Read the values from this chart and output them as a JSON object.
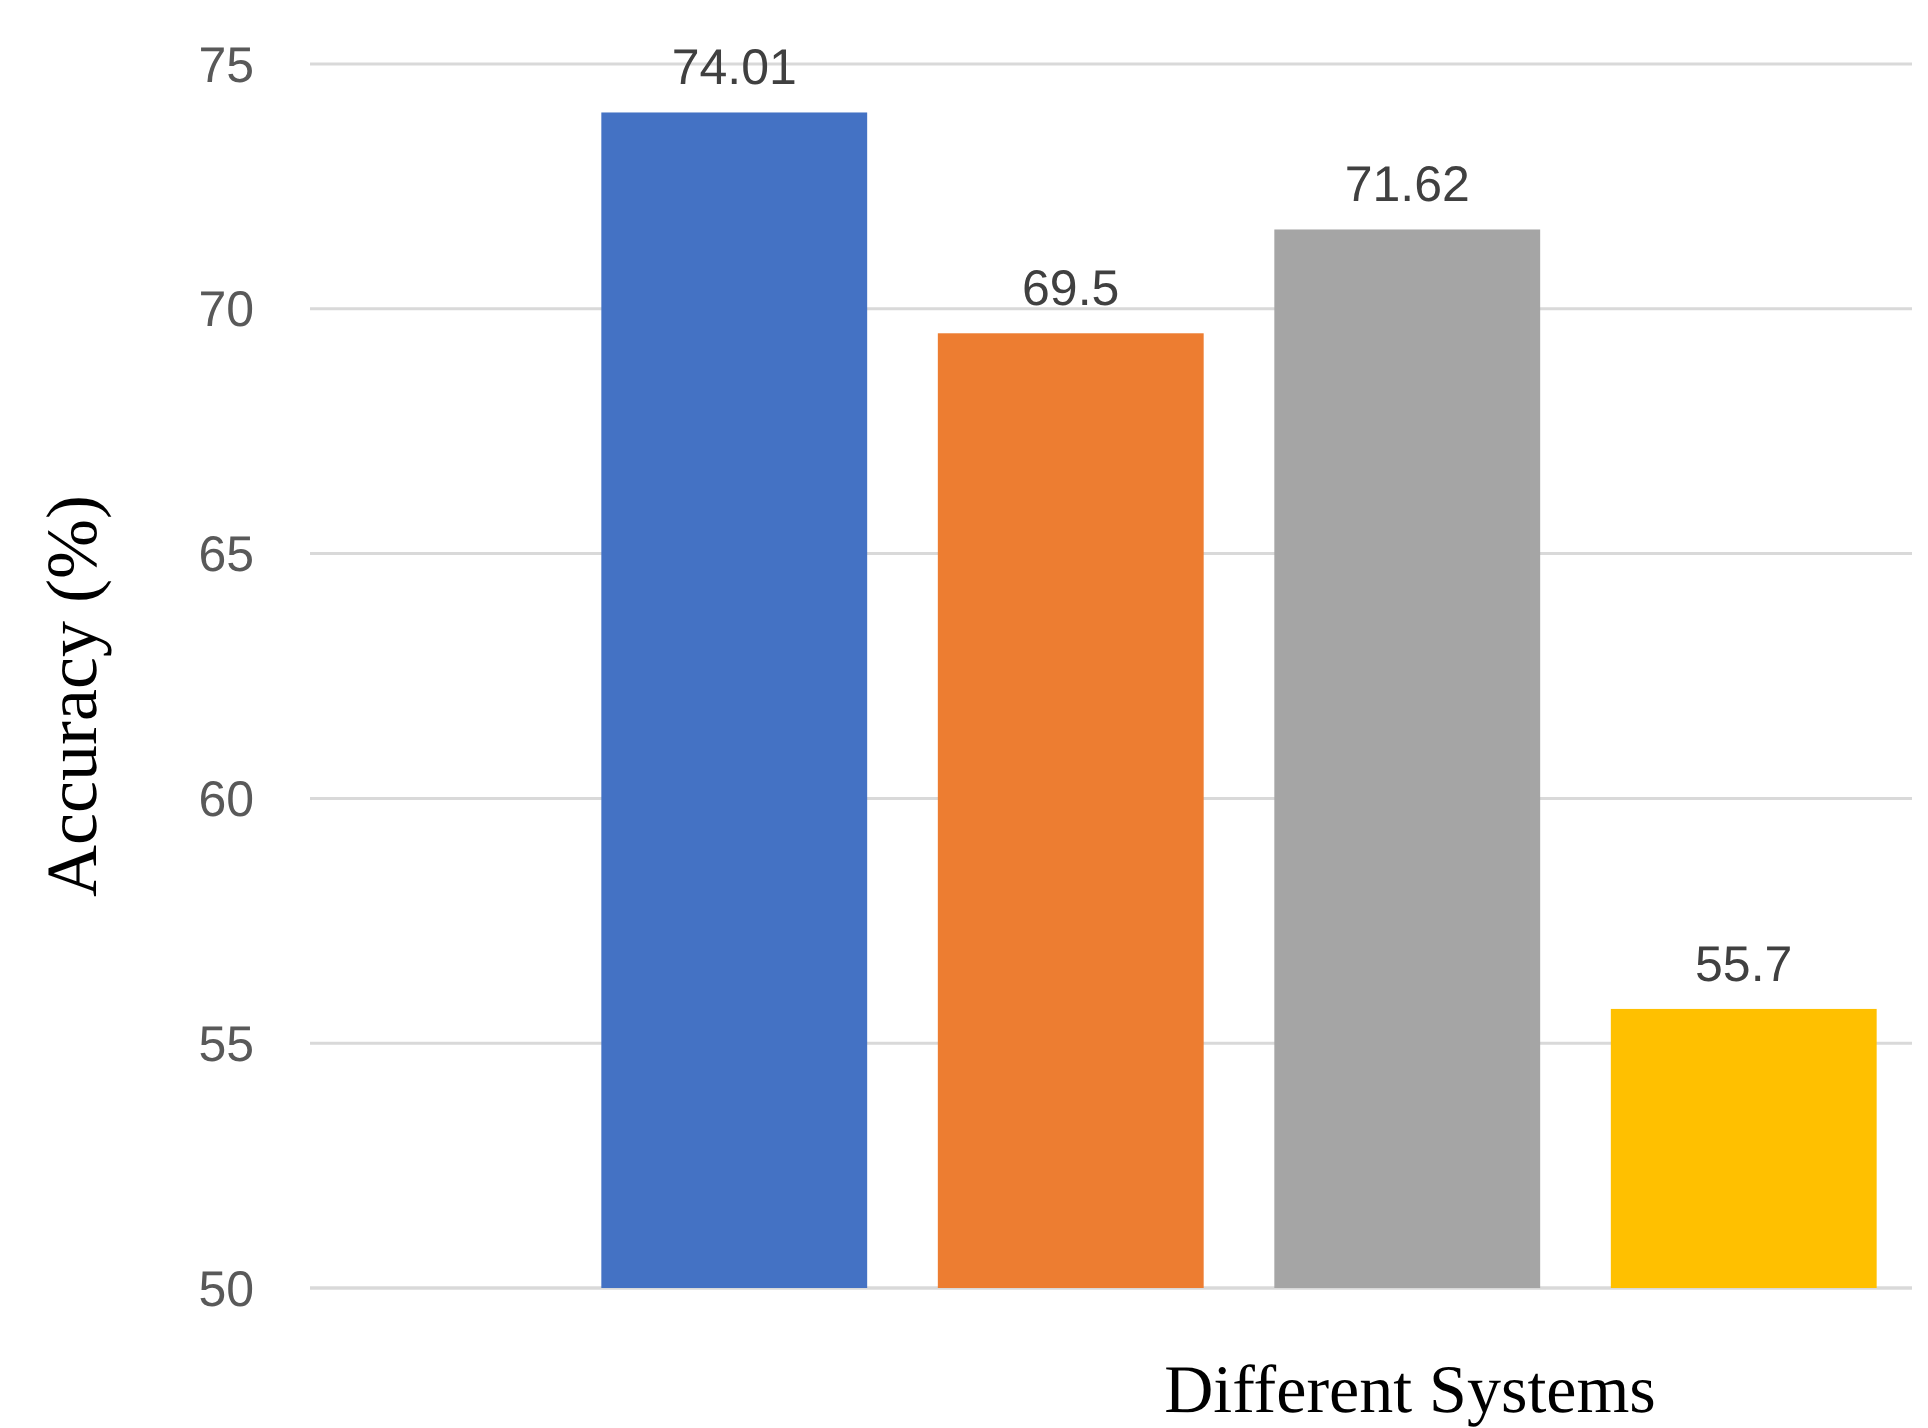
{
  "chart_data": {
    "type": "bar",
    "xlabel": "Different Systems",
    "ylabel": "Accuracy (%)",
    "categories": [
      null,
      null,
      null,
      null
    ],
    "values": [
      74.01,
      69.5,
      71.62,
      55.7
    ],
    "colors": [
      "#4472c4",
      "#ed7d31",
      "#a5a5a5",
      "#ffc000"
    ],
    "ylim": [
      50,
      75
    ],
    "yticks": [
      50,
      55,
      60,
      65,
      70,
      75
    ],
    "grid": "y",
    "data_labels": true
  }
}
